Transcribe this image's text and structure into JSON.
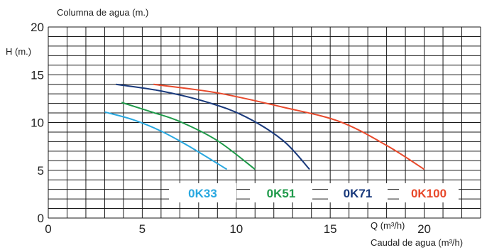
{
  "chart_data": {
    "type": "line",
    "title": "Columna de agua (m.)",
    "ylabel": "H (m.)",
    "xlabel_short": "Q (m³/h)",
    "xlabel": "Caudal de agua (m³/h)",
    "xlim": [
      0,
      23
    ],
    "ylim": [
      0,
      20
    ],
    "x_ticks": [
      0,
      5,
      10,
      15,
      20
    ],
    "y_ticks": [
      0,
      5,
      10,
      15,
      20
    ],
    "grid": true,
    "legend_position": "bottom-right",
    "series": [
      {
        "name": "0K33",
        "color": "#29a8e0",
        "x": [
          3.0,
          4.5,
          6.0,
          7.5,
          9.5
        ],
        "y": [
          11.1,
          10.3,
          9.1,
          7.5,
          5.1
        ]
      },
      {
        "name": "0K51",
        "color": "#1f9a4a",
        "x": [
          3.9,
          5.5,
          7.0,
          9.0,
          11.0
        ],
        "y": [
          12.1,
          11.1,
          10.1,
          8.1,
          5.1
        ]
      },
      {
        "name": "0K71",
        "color": "#1a3a7c",
        "x": [
          3.6,
          6.0,
          8.5,
          10.5,
          12.5,
          13.9
        ],
        "y": [
          14.0,
          13.3,
          12.1,
          10.6,
          8.1,
          5.1
        ]
      },
      {
        "name": "0K100",
        "color": "#e8492b",
        "x": [
          5.6,
          9.0,
          12.5,
          15.5,
          18.0,
          20.0
        ],
        "y": [
          14.0,
          13.1,
          11.6,
          10.1,
          7.6,
          5.1
        ]
      }
    ]
  }
}
